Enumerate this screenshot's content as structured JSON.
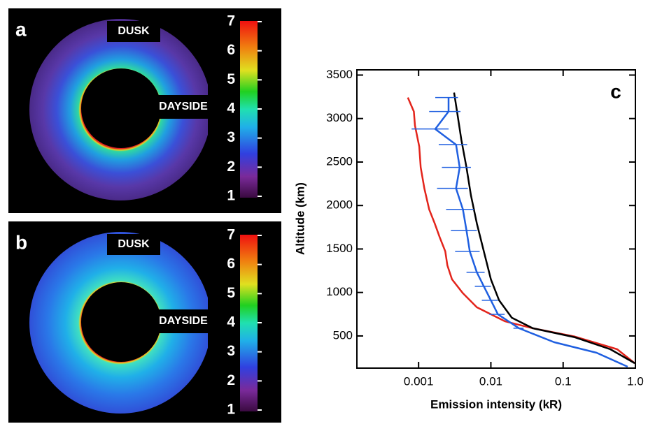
{
  "panels": [
    {
      "label": "a",
      "dusk": "DUSK",
      "dayside": "DAYSIDE",
      "colorbar_ticks": [
        1,
        2,
        3,
        4,
        5,
        6,
        7
      ]
    },
    {
      "label": "b",
      "dusk": "DUSK",
      "dayside": "DAYSIDE",
      "colorbar_ticks": [
        1,
        2,
        3,
        4,
        5,
        6,
        7
      ]
    }
  ],
  "chart_data": {
    "type": "line",
    "label": "c",
    "xlabel": "Emission intensity (kR)",
    "ylabel": "Altitude (km)",
    "xscale": "log",
    "xlim": [
      0.00014,
      1.0
    ],
    "ylim": [
      130,
      3560
    ],
    "xticks": [
      0.001,
      0.01,
      0.1,
      {
        "value": 1,
        "label": "1.0"
      }
    ],
    "yticks": [
      500,
      1000,
      1500,
      2000,
      2500,
      3000,
      3500
    ],
    "series": [
      {
        "color": "#e3241b",
        "x": [
          0.00071,
          0.00086,
          0.00089,
          0.00102,
          0.00107,
          0.0012,
          0.0014,
          0.00167,
          0.00196,
          0.00234,
          0.0025,
          0.0029,
          0.0041,
          0.0064,
          0.0156,
          0.038,
          0.146,
          0.56,
          0.98
        ],
        "y": [
          3242,
          3081,
          2920,
          2679,
          2438,
          2197,
          1955,
          1794,
          1634,
          1473,
          1312,
          1151,
          991,
          830,
          669,
          589,
          492,
          347,
          186
        ]
      },
      {
        "color": "#000000",
        "x": [
          0.0031,
          0.0034,
          0.0039,
          0.0046,
          0.0053,
          0.0064,
          0.008,
          0.01,
          0.013,
          0.0195,
          0.038,
          0.146,
          0.45,
          0.98
        ],
        "y": [
          3298,
          3081,
          2759,
          2438,
          2116,
          1794,
          1473,
          1151,
          910,
          709,
          589,
          484,
          347,
          186
        ]
      },
      {
        "color": "#1f5fe0",
        "x": [
          0.0026,
          0.0026,
          0.0017,
          0.0033,
          0.0037,
          0.0033,
          0.0041,
          0.0046,
          0.0051,
          0.0064,
          0.008,
          0.01,
          0.0125,
          0.0245,
          0.075,
          0.29,
          0.78
        ],
        "y": [
          3242,
          3081,
          2880,
          2700,
          2438,
          2197,
          1955,
          1714,
          1473,
          1232,
          1071,
          910,
          749,
          589,
          428,
          307,
          146
        ],
        "xerr": [
          0.0009,
          0.0012,
          0.0009,
          0.0014,
          0.0016,
          0.0015,
          0.0017,
          0.0018,
          0.0019,
          0.0018,
          0.002,
          0.0025,
          0.003,
          0.004,
          null,
          null,
          null
        ]
      }
    ]
  }
}
